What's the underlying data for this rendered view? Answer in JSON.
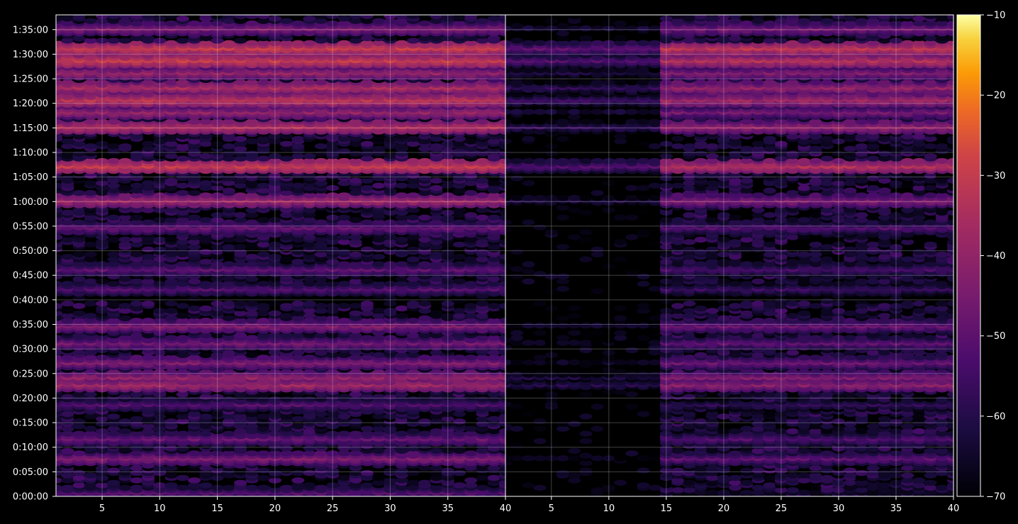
{
  "chart_data": {
    "type": "heatmap",
    "title": "",
    "xlabel": "",
    "ylabel": "",
    "grid": true,
    "panels": [
      {
        "name": "",
        "xlim": [
          1,
          40
        ],
        "x_ticks": [
          "5",
          "10",
          "15",
          "20",
          "25",
          "30",
          "35",
          "40"
        ]
      },
      {
        "name": "",
        "xlim": [
          1,
          40
        ],
        "x_ticks": [
          "5",
          "10",
          "15",
          "20",
          "25",
          "30",
          "35",
          "40"
        ]
      }
    ],
    "y_axis": {
      "ylim_seconds": [
        0,
        5880
      ],
      "ticks": [
        "0:00:00",
        "0:05:00",
        "0:10:00",
        "0:15:00",
        "0:20:00",
        "0:25:00",
        "0:30:00",
        "0:35:00",
        "0:40:00",
        "0:45:00",
        "0:50:00",
        "0:55:00",
        "1:00:00",
        "1:05:00",
        "1:10:00",
        "1:15:00",
        "1:20:00",
        "1:25:00",
        "1:30:00",
        "1:35:00"
      ]
    },
    "colorbar": {
      "range": [
        -70,
        -10
      ],
      "ticks": [
        "−70",
        "−60",
        "−50",
        "−40",
        "−30",
        "−20",
        "−10"
      ],
      "colormap": "inferno"
    },
    "bands_description_minutes": [
      {
        "t": 0.5,
        "level_left": -52,
        "level_right": -66
      },
      {
        "t": 7.5,
        "level_left": -44,
        "level_right": -50
      },
      {
        "t": 11.5,
        "level_left": -48,
        "level_right": -52
      },
      {
        "t": 18.5,
        "level_left": -52,
        "level_right": -58
      },
      {
        "t": 22.5,
        "level_left": -38,
        "level_right": -42
      },
      {
        "t": 24,
        "level_left": -40,
        "level_right": -44
      },
      {
        "t": 27,
        "level_left": -44,
        "level_right": -48
      },
      {
        "t": 31,
        "level_left": -46,
        "level_right": -50
      },
      {
        "t": 34.5,
        "level_left": -44,
        "level_right": -48
      },
      {
        "t": 42,
        "level_left": -52,
        "level_right": -56
      },
      {
        "t": 46,
        "level_left": -50,
        "level_right": -54
      },
      {
        "t": 54.5,
        "level_left": -48,
        "level_right": -52
      },
      {
        "t": 60,
        "level_left": -38,
        "level_right": -44
      },
      {
        "t": 67,
        "level_left": -30,
        "level_right": -34
      },
      {
        "t": 75,
        "level_left": -34,
        "level_right": -40
      },
      {
        "t": 78,
        "level_left": -40,
        "level_right": -46
      },
      {
        "t": 80.5,
        "level_left": -32,
        "level_right": -38
      },
      {
        "t": 83,
        "level_left": -36,
        "level_right": -40
      },
      {
        "t": 86,
        "level_left": -40,
        "level_right": -44
      },
      {
        "t": 88.5,
        "level_left": -30,
        "level_right": -34
      },
      {
        "t": 91,
        "level_left": -30,
        "level_right": -32
      },
      {
        "t": 95,
        "level_left": -44,
        "level_right": -46
      }
    ]
  }
}
